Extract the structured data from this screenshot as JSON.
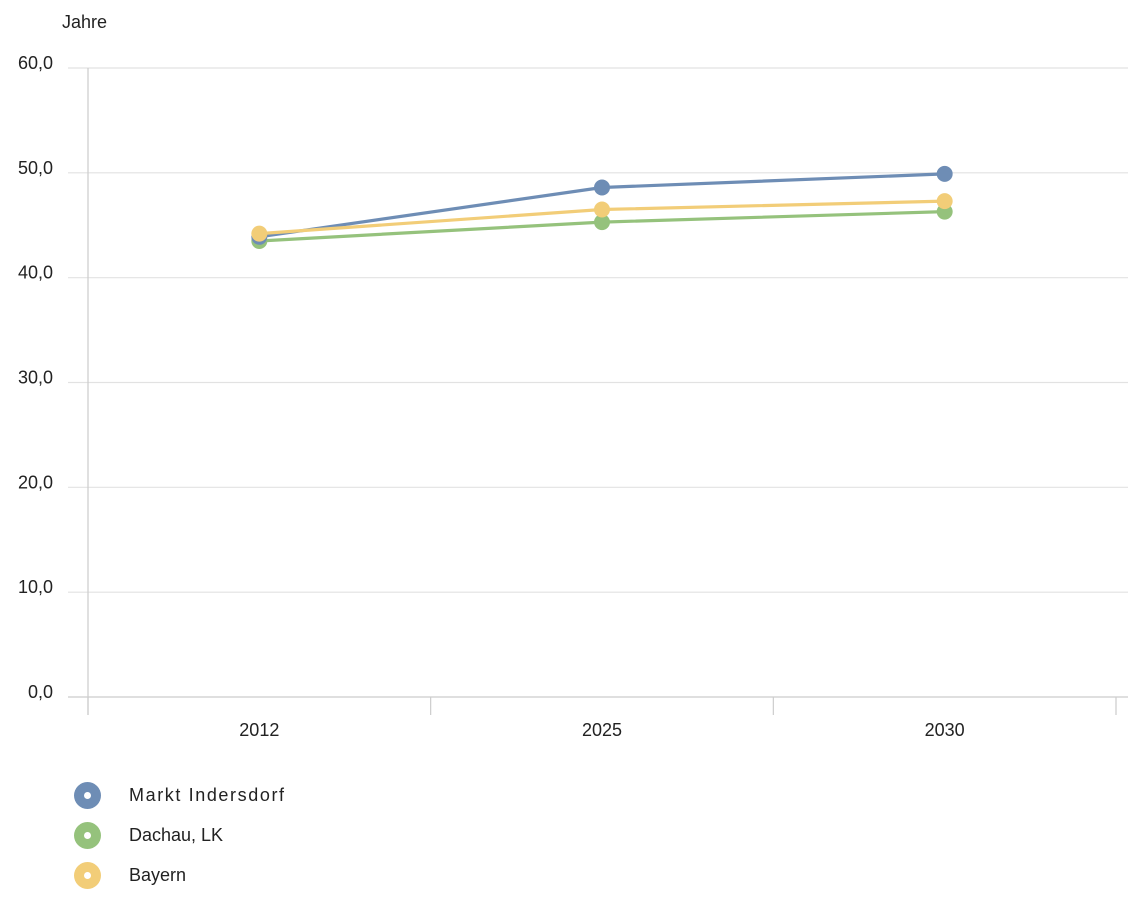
{
  "chart_data": {
    "type": "line",
    "title": "",
    "xlabel": "",
    "ylabel": "Jahre",
    "categories": [
      "2012",
      "2025",
      "2030"
    ],
    "ylim": [
      0,
      60
    ],
    "y_ticks": [
      "0,0",
      "10,0",
      "20,0",
      "30,0",
      "40,0",
      "50,0",
      "60,0"
    ],
    "grid": true,
    "legend_position": "bottom-left",
    "series": [
      {
        "name": "Markt Indersdorf",
        "color": "#6e8db5",
        "values": [
          43.9,
          48.6,
          49.9
        ]
      },
      {
        "name": "Dachau, LK",
        "color": "#95c27c",
        "values": [
          43.5,
          45.3,
          46.3
        ]
      },
      {
        "name": "Bayern",
        "color": "#f2cd78",
        "values": [
          44.2,
          46.5,
          47.3
        ]
      }
    ]
  }
}
